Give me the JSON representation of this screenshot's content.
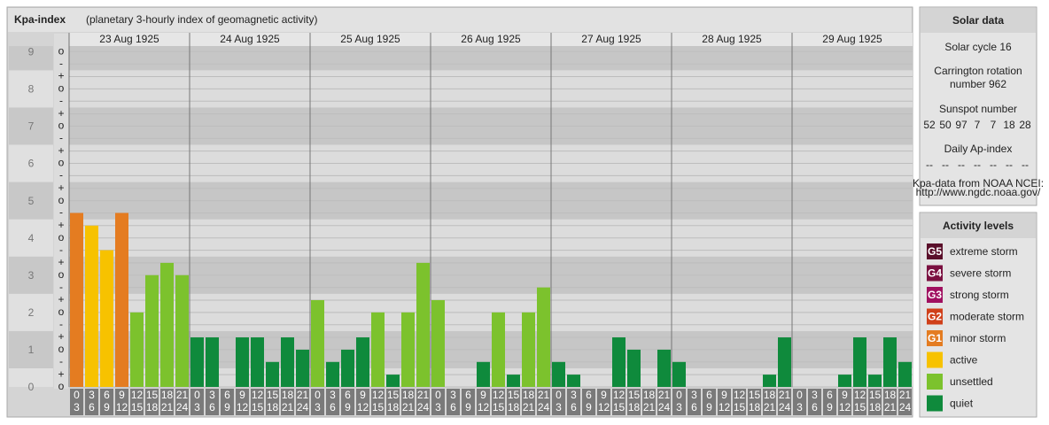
{
  "chart_data": {
    "type": "bar",
    "title": "Kpa-index",
    "subtitle": "(planetary 3-hourly index of geomagnetic activity)",
    "days": [
      "23 Aug 1925",
      "24 Aug 1925",
      "25 Aug 1925",
      "26 Aug 1925",
      "27 Aug 1925",
      "28 Aug 1925",
      "29 Aug 1925"
    ],
    "hours": [
      [
        "0",
        "3"
      ],
      [
        "3",
        "6"
      ],
      [
        "6",
        "9"
      ],
      [
        "9",
        "12"
      ],
      [
        "12",
        "15"
      ],
      [
        "15",
        "18"
      ],
      [
        "18",
        "21"
      ],
      [
        "21",
        "24"
      ]
    ],
    "values": [
      4.67,
      4.33,
      3.67,
      4.67,
      2,
      3,
      3.33,
      3,
      1.33,
      1.33,
      0,
      1.33,
      1.33,
      0.67,
      1.33,
      1,
      2.33,
      0.67,
      1,
      1.33,
      2,
      0.33,
      2,
      3.33,
      2.33,
      0,
      0,
      0.67,
      2,
      0.33,
      2,
      2.67,
      0.67,
      0.33,
      0,
      0,
      1.33,
      1,
      0,
      1,
      0.67,
      0,
      0,
      0,
      0,
      0,
      0.33,
      1.33,
      0,
      0,
      0,
      0.33,
      1.33,
      0.33,
      1.33,
      0.67
    ],
    "colors": [
      "#e47c21",
      "#f7c200",
      "#f7c200",
      "#e47c21",
      "#7cc22d",
      "#7cc22d",
      "#7cc22d",
      "#7cc22d",
      "#0f8a3c",
      "#0f8a3c",
      "#0f8a3c",
      "#0f8a3c",
      "#0f8a3c",
      "#0f8a3c",
      "#0f8a3c",
      "#0f8a3c",
      "#7cc22d",
      "#0f8a3c",
      "#0f8a3c",
      "#0f8a3c",
      "#7cc22d",
      "#0f8a3c",
      "#7cc22d",
      "#7cc22d",
      "#7cc22d",
      "#0f8a3c",
      "#0f8a3c",
      "#0f8a3c",
      "#7cc22d",
      "#0f8a3c",
      "#7cc22d",
      "#7cc22d",
      "#0f8a3c",
      "#0f8a3c",
      "#0f8a3c",
      "#0f8a3c",
      "#0f8a3c",
      "#0f8a3c",
      "#0f8a3c",
      "#0f8a3c",
      "#0f8a3c",
      "#0f8a3c",
      "#0f8a3c",
      "#0f8a3c",
      "#0f8a3c",
      "#0f8a3c",
      "#0f8a3c",
      "#0f8a3c",
      "#0f8a3c",
      "#0f8a3c",
      "#0f8a3c",
      "#0f8a3c",
      "#0f8a3c",
      "#0f8a3c",
      "#0f8a3c",
      "#0f8a3c"
    ],
    "ylim": [
      0,
      9.15
    ],
    "major_yticks": [
      0,
      1,
      2,
      3,
      4,
      5,
      6,
      7,
      8,
      9
    ],
    "yticks": [
      {
        "value": 0,
        "label": "o"
      },
      {
        "value": 0.33,
        "label": "+"
      },
      {
        "value": 0.67,
        "label": "-"
      },
      {
        "value": 1,
        "label": "o"
      },
      {
        "value": 1.33,
        "label": "+"
      },
      {
        "value": 1.67,
        "label": "-"
      },
      {
        "value": 2,
        "label": "o"
      },
      {
        "value": 2.33,
        "label": "+"
      },
      {
        "value": 2.67,
        "label": "-"
      },
      {
        "value": 3,
        "label": "o"
      },
      {
        "value": 3.33,
        "label": "+"
      },
      {
        "value": 3.67,
        "label": "-"
      },
      {
        "value": 4,
        "label": "o"
      },
      {
        "value": 4.33,
        "label": "+"
      },
      {
        "value": 4.67,
        "label": "-"
      },
      {
        "value": 5,
        "label": "o"
      },
      {
        "value": 5.33,
        "label": "+"
      },
      {
        "value": 5.67,
        "label": "-"
      },
      {
        "value": 6,
        "label": "o"
      },
      {
        "value": 6.33,
        "label": "+"
      },
      {
        "value": 6.67,
        "label": "-"
      },
      {
        "value": 7,
        "label": "o"
      },
      {
        "value": 7.33,
        "label": "+"
      },
      {
        "value": 7.67,
        "label": "-"
      },
      {
        "value": 8,
        "label": "o"
      },
      {
        "value": 8.33,
        "label": "+"
      },
      {
        "value": 8.67,
        "label": "-"
      },
      {
        "value": 9,
        "label": "o"
      }
    ],
    "grid": true
  },
  "solar_data": {
    "title": "Solar data",
    "cycle": "Solar cycle 16",
    "carrington": [
      "Carrington rotation",
      "number 962"
    ],
    "sunspot_title": "Sunspot number",
    "sunspots": [
      52,
      50,
      97,
      7,
      7,
      18,
      28
    ],
    "ap_title": "Daily Ap-index",
    "ap": [
      "--",
      "--",
      "--",
      "--",
      "--",
      "--",
      "--"
    ],
    "source": [
      "Kpa-data from NOAA NCEI:",
      "http://www.ngdc.noaa.gov/"
    ]
  },
  "activity_levels": {
    "title": "Activity levels",
    "items": [
      {
        "badge": "G5",
        "label": "extreme storm",
        "color": "#5a0f2a"
      },
      {
        "badge": "G4",
        "label": "severe storm",
        "color": "#7a1040"
      },
      {
        "badge": "G3",
        "label": "strong storm",
        "color": "#a01060"
      },
      {
        "badge": "G2",
        "label": "moderate storm",
        "color": "#d0401a"
      },
      {
        "badge": "G1",
        "label": "minor storm",
        "color": "#e47c21"
      },
      {
        "label": "active",
        "color": "#f7c200"
      },
      {
        "label": "unsettled",
        "color": "#7cc22d"
      },
      {
        "label": "quiet",
        "color": "#0f8a3c"
      }
    ]
  }
}
